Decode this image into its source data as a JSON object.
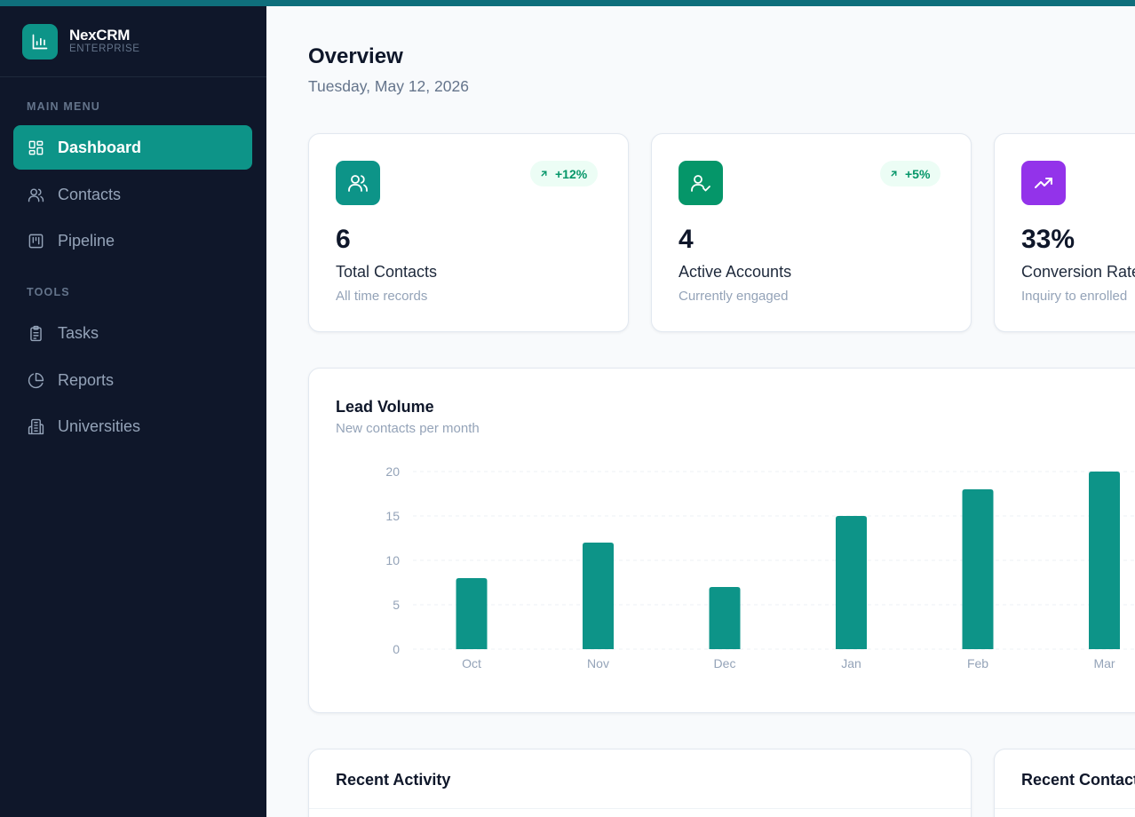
{
  "brand": {
    "name": "NexCRM",
    "subtitle": "ENTERPRISE"
  },
  "sidebar": {
    "sections": [
      {
        "label": "MAIN MENU"
      },
      {
        "label": "TOOLS"
      }
    ],
    "items": [
      {
        "label": "Dashboard",
        "icon": "layout-grid-icon",
        "active": true
      },
      {
        "label": "Contacts",
        "icon": "users-icon",
        "active": false
      },
      {
        "label": "Pipeline",
        "icon": "kanban-icon",
        "active": false
      },
      {
        "label": "Tasks",
        "icon": "clipboard-list-icon",
        "active": false
      },
      {
        "label": "Reports",
        "icon": "pie-chart-icon",
        "active": false
      },
      {
        "label": "Universities",
        "icon": "building-icon",
        "active": false
      }
    ]
  },
  "header": {
    "title": "Overview",
    "date": "Tuesday, May 12, 2026"
  },
  "stats": [
    {
      "value": "6",
      "label": "Total Contacts",
      "description": "All time records",
      "badge": "+12%",
      "icon": "users-icon",
      "color": "#0d9488"
    },
    {
      "value": "4",
      "label": "Active Accounts",
      "description": "Currently engaged",
      "badge": "+5%",
      "icon": "user-check-icon",
      "color": "#059669"
    },
    {
      "value": "33%",
      "label": "Conversion Rate",
      "description": "Inquiry to enrolled",
      "icon": "trending-up-icon",
      "color": "#9333ea"
    }
  ],
  "chart": {
    "title": "Lead Volume",
    "subtitle": "New contacts per month"
  },
  "chart_data": {
    "type": "bar",
    "categories": [
      "Oct",
      "Nov",
      "Dec",
      "Jan",
      "Feb",
      "Mar"
    ],
    "values": [
      8,
      12,
      7,
      15,
      18,
      20
    ],
    "title": "Lead Volume",
    "subtitle": "New contacts per month",
    "xlabel": "",
    "ylabel": "",
    "ylim": [
      0,
      20
    ],
    "yticks": [
      0,
      5,
      10,
      15,
      20
    ],
    "grid": true,
    "bar_color": "#0d9488"
  },
  "bottom": {
    "activity_title": "Recent Activity",
    "contacts_title": "Recent Contacts"
  },
  "colors": {
    "accent": "#0d9488",
    "sidebar": "#0f172a",
    "topbar": "#0f6f7c"
  }
}
